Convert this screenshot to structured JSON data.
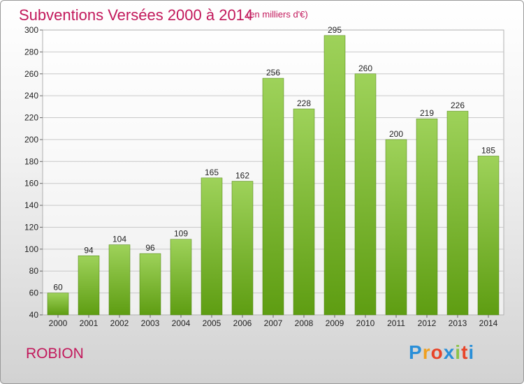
{
  "header": {
    "title": "Subventions Versées 2000 à 2014",
    "subtitle": "(en milliers d'€)"
  },
  "footer": {
    "commune": "ROBION",
    "logo_letters": [
      "P",
      "r",
      "o",
      "x",
      "i",
      "t",
      "i"
    ],
    "logo_colors": [
      "#2a8fd8",
      "#f0a020",
      "#e8452a",
      "#2a8fd8",
      "#8bc34a",
      "#e8452a",
      "#2a8fd8"
    ]
  },
  "colors": {
    "bar_top": "#9ed25a",
    "bar_bottom": "#5e9d12",
    "text": "#222222",
    "grid": "#c8c8c8"
  },
  "chart_data": {
    "type": "bar",
    "categories": [
      "2000",
      "2001",
      "2002",
      "2003",
      "2004",
      "2005",
      "2006",
      "2007",
      "2008",
      "2009",
      "2010",
      "2011",
      "2012",
      "2013",
      "2014"
    ],
    "values": [
      60,
      94,
      104,
      96,
      109,
      165,
      162,
      256,
      228,
      295,
      260,
      200,
      219,
      226,
      185
    ],
    "ylim": [
      40,
      300
    ],
    "yticks": [
      40,
      60,
      80,
      100,
      120,
      140,
      160,
      180,
      200,
      220,
      240,
      260,
      280,
      300
    ],
    "grid": true,
    "data_labels": true
  }
}
